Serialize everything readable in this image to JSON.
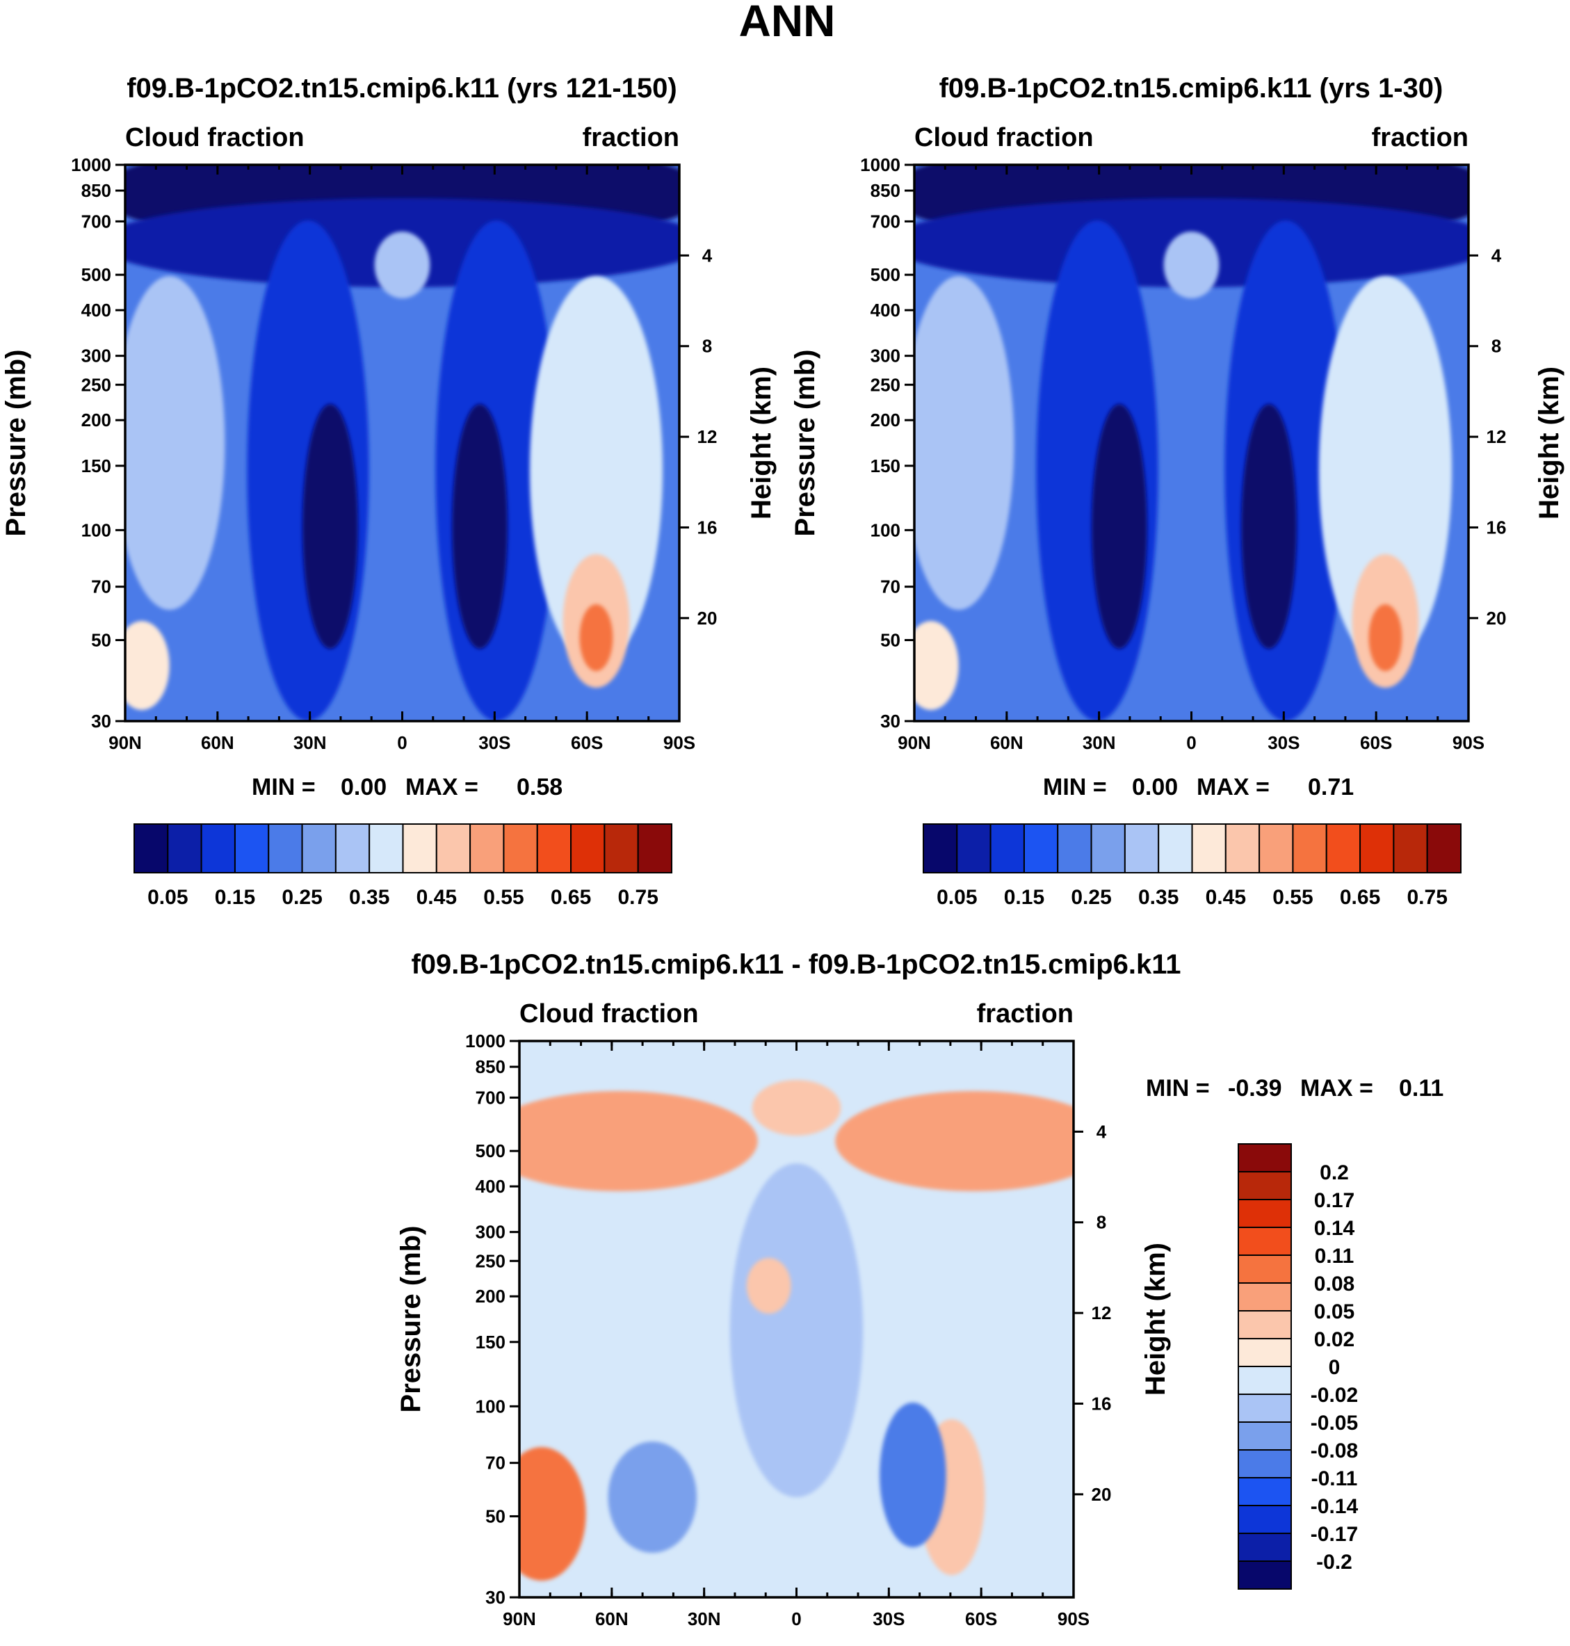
{
  "title": "ANN",
  "colors": {
    "sequential_scale": [
      "#07076b",
      "#0c1fa8",
      "#0d36d8",
      "#1c54f2",
      "#4b7be8",
      "#7aa0ec",
      "#aac4f5",
      "#d6e8fa",
      "#fde9d9",
      "#fbc6ac",
      "#f9a07a",
      "#f5733f",
      "#f24e1c",
      "#de3007",
      "#b8280a",
      "#8a0a0a"
    ],
    "difference_scale": [
      "#8a0a0a",
      "#b8280a",
      "#de3007",
      "#f24e1c",
      "#f5733f",
      "#f9a07a",
      "#fbc6ac",
      "#fde9d9",
      "#d6e8fa",
      "#aac4f5",
      "#7aa0ec",
      "#4b7be8",
      "#1c54f2",
      "#0d36d8",
      "#0c1fa8",
      "#07076b"
    ]
  },
  "chart_data": [
    {
      "type": "heatmap",
      "name": "panel-yrs-121-150",
      "title": "f09.B-1pCO2.tn15.cmip6.k11 (yrs 121-150)",
      "left_label": "Cloud fraction",
      "right_label": "fraction",
      "ylabel": "Pressure (mb)",
      "y2label": "Height (km)",
      "x_ticks": [
        "90N",
        "60N",
        "30N",
        "0",
        "30S",
        "60S",
        "90S"
      ],
      "y_ticks": [
        "30",
        "50",
        "70",
        "100",
        "150",
        "200",
        "250",
        "300",
        "400",
        "500",
        "700",
        "850",
        "1000"
      ],
      "y_ticks_values": [
        30,
        50,
        70,
        100,
        150,
        200,
        250,
        300,
        400,
        500,
        700,
        850,
        1000
      ],
      "y2_ticks": [
        "20",
        "16",
        "12",
        "8",
        "4"
      ],
      "y2_ticks_values": [
        20,
        16,
        12,
        8,
        4
      ],
      "xlim": [
        -90,
        90
      ],
      "ylim": [
        1000,
        30
      ],
      "stats": {
        "min_label": "MIN =",
        "min_value": "0.00",
        "max_label": "MAX =",
        "max_value": "0.58"
      },
      "colorbar_labels": [
        "0.05",
        "0.15",
        "0.25",
        "0.35",
        "0.45",
        "0.55",
        "0.65",
        "0.75"
      ],
      "colorbar_levels": [
        0.05,
        0.1,
        0.15,
        0.2,
        0.25,
        0.3,
        0.35,
        0.4,
        0.45,
        0.5,
        0.55,
        0.6,
        0.65,
        0.7,
        0.75
      ]
    },
    {
      "type": "heatmap",
      "name": "panel-yrs-1-30",
      "title": "f09.B-1pCO2.tn15.cmip6.k11 (yrs 1-30)",
      "left_label": "Cloud fraction",
      "right_label": "fraction",
      "ylabel": "Pressure (mb)",
      "y2label": "Height (km)",
      "x_ticks": [
        "90N",
        "60N",
        "30N",
        "0",
        "30S",
        "60S",
        "90S"
      ],
      "y_ticks": [
        "30",
        "50",
        "70",
        "100",
        "150",
        "200",
        "250",
        "300",
        "400",
        "500",
        "700",
        "850",
        "1000"
      ],
      "y_ticks_values": [
        30,
        50,
        70,
        100,
        150,
        200,
        250,
        300,
        400,
        500,
        700,
        850,
        1000
      ],
      "y2_ticks": [
        "20",
        "16",
        "12",
        "8",
        "4"
      ],
      "y2_ticks_values": [
        20,
        16,
        12,
        8,
        4
      ],
      "xlim": [
        -90,
        90
      ],
      "ylim": [
        1000,
        30
      ],
      "stats": {
        "min_label": "MIN =",
        "min_value": "0.00",
        "max_label": "MAX =",
        "max_value": "0.71"
      },
      "colorbar_labels": [
        "0.05",
        "0.15",
        "0.25",
        "0.35",
        "0.45",
        "0.55",
        "0.65",
        "0.75"
      ],
      "colorbar_levels": [
        0.05,
        0.1,
        0.15,
        0.2,
        0.25,
        0.3,
        0.35,
        0.4,
        0.45,
        0.5,
        0.55,
        0.6,
        0.65,
        0.7,
        0.75
      ]
    },
    {
      "type": "heatmap",
      "name": "panel-difference",
      "title": "f09.B-1pCO2.tn15.cmip6.k11 - f09.B-1pCO2.tn15.cmip6.k11",
      "left_label": "Cloud fraction",
      "right_label": "fraction",
      "ylabel": "Pressure (mb)",
      "y2label": "Height (km)",
      "x_ticks": [
        "90N",
        "60N",
        "30N",
        "0",
        "30S",
        "60S",
        "90S"
      ],
      "y_ticks": [
        "30",
        "50",
        "70",
        "100",
        "150",
        "200",
        "250",
        "300",
        "400",
        "500",
        "700",
        "850",
        "1000"
      ],
      "y_ticks_values": [
        30,
        50,
        70,
        100,
        150,
        200,
        250,
        300,
        400,
        500,
        700,
        850,
        1000
      ],
      "y2_ticks": [
        "20",
        "16",
        "12",
        "8",
        "4"
      ],
      "y2_ticks_values": [
        20,
        16,
        12,
        8,
        4
      ],
      "xlim": [
        -90,
        90
      ],
      "ylim": [
        1000,
        30
      ],
      "stats": {
        "min_label": "MIN =",
        "min_value": "-0.39",
        "max_label": "MAX =",
        "max_value": "0.11"
      },
      "colorbar_labels": [
        "0.2",
        "0.17",
        "0.14",
        "0.11",
        "0.08",
        "0.05",
        "0.02",
        "0",
        "-0.02",
        "-0.05",
        "-0.08",
        "-0.11",
        "-0.14",
        "-0.17",
        "-0.2"
      ]
    }
  ]
}
